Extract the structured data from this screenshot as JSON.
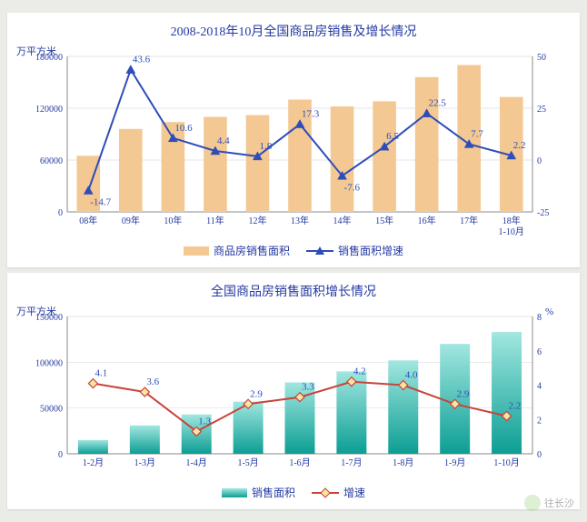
{
  "chart1": {
    "title": "2008-2018年10月全国商品房销售及增长情况",
    "y1_label": "万平方米",
    "y1_lim": [
      0,
      180000
    ],
    "y1_step": 60000,
    "y2_lim": [
      -25,
      50
    ],
    "y2_step": 25,
    "cats": [
      "08年",
      "09年",
      "10年",
      "11年",
      "12年",
      "13年",
      "14年",
      "15年",
      "16年",
      "17年",
      "18年"
    ],
    "xnote": "1-10月",
    "bars": [
      65000,
      96000,
      104000,
      110000,
      112000,
      130000,
      122000,
      128000,
      156000,
      170000,
      133000
    ],
    "bar_color": "#f3c892",
    "bar_width": 0.55,
    "line": [
      -14.7,
      43.6,
      10.6,
      4.4,
      1.8,
      17.3,
      -7.6,
      6.5,
      22.5,
      7.7,
      2.2
    ],
    "line_color": "#2f4db9",
    "marker": "triangle",
    "marker_fill": "#2f4db9",
    "label_color": "#2f4db9",
    "grid_color": "#dddddd",
    "legend": [
      {
        "t": "商品房销售面积",
        "k": "bar"
      },
      {
        "t": "销售面积增速",
        "k": "line"
      }
    ]
  },
  "chart2": {
    "title": "全国商品房销售面积增长情况",
    "y1_label": "万平方米",
    "y2_label": "%",
    "y1_lim": [
      0,
      150000
    ],
    "y1_step": 50000,
    "y2_lim": [
      0,
      8
    ],
    "y2_step": 2,
    "cats": [
      "1-2月",
      "1-3月",
      "1-4月",
      "1-5月",
      "1-6月",
      "1-7月",
      "1-8月",
      "1-9月",
      "1-10月"
    ],
    "bars": [
      15000,
      31000,
      43000,
      57000,
      78000,
      90000,
      102000,
      120000,
      133000
    ],
    "bar_color_top": "#a1e7e0",
    "bar_color_bot": "#0c9e94",
    "bar_width": 0.58,
    "line": [
      4.1,
      3.6,
      1.3,
      2.9,
      3.3,
      4.2,
      4.0,
      2.9,
      2.2
    ],
    "line_color": "#c9433a",
    "marker": "diamond",
    "marker_fill": "#f7e6a1",
    "marker_stroke": "#c9433a",
    "label_color": "#2f4db9",
    "grid_color": "#dddddd",
    "legend": [
      {
        "t": "销售面积",
        "k": "bar"
      },
      {
        "t": "增速",
        "k": "line"
      }
    ]
  },
  "watermark": "往长沙"
}
